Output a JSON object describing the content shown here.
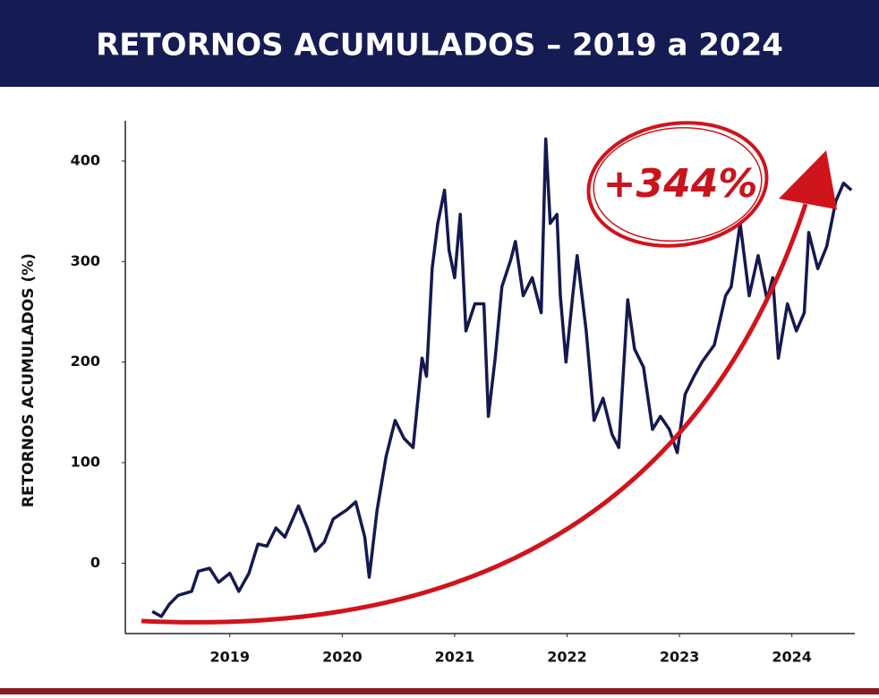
{
  "chart_data": {
    "type": "line",
    "title": "RETORNOS ACUMULADOS – 2019 a 2024",
    "y_label": "RETORNOS ACUMULADOS (%)",
    "annotation": "+344%",
    "xlim": [
      2018.07,
      2024.56
    ],
    "xticks": [
      2019,
      2020,
      2021,
      2022,
      2023,
      2024
    ],
    "ylim": [
      -70,
      440
    ],
    "yticks": [
      0,
      100,
      200,
      300,
      400
    ],
    "grid": false,
    "x": [
      2018.31,
      2018.39,
      2018.46,
      2018.54,
      2018.66,
      2018.72,
      2018.82,
      2018.9,
      2019.0,
      2019.08,
      2019.17,
      2019.25,
      2019.33,
      2019.41,
      2019.49,
      2019.61,
      2019.69,
      2019.76,
      2019.84,
      2019.92,
      2020.04,
      2020.12,
      2020.2,
      2020.24,
      2020.31,
      2020.39,
      2020.47,
      2020.55,
      2020.63,
      2020.71,
      2020.75,
      2020.8,
      2020.85,
      2020.91,
      2020.95,
      2021.0,
      2021.05,
      2021.1,
      2021.18,
      2021.26,
      2021.3,
      2021.36,
      2021.42,
      2021.5,
      2021.54,
      2021.61,
      2021.69,
      2021.77,
      2021.81,
      2021.85,
      2021.91,
      2021.94,
      2021.99,
      2022.05,
      2022.09,
      2022.17,
      2022.24,
      2022.32,
      2022.4,
      2022.46,
      2022.54,
      2022.6,
      2022.68,
      2022.76,
      2022.83,
      2022.91,
      2022.98,
      2023.05,
      2023.13,
      2023.2,
      2023.31,
      2023.41,
      2023.46,
      2023.54,
      2023.62,
      2023.7,
      2023.78,
      2023.83,
      2023.88,
      2023.96,
      2024.04,
      2024.11,
      2024.15,
      2024.23,
      2024.31,
      2024.39,
      2024.46,
      2024.53
    ],
    "series": [
      {
        "name": "Retornos acumulados",
        "color": "#141a4f",
        "values": [
          -48,
          -53,
          -41,
          -32,
          -28,
          -8,
          -5,
          -19,
          -10,
          -28,
          -10,
          19,
          17,
          35,
          26,
          57,
          35,
          12,
          21,
          44,
          53,
          61,
          26,
          -14,
          53,
          106,
          142,
          124,
          115,
          204,
          186,
          293,
          338,
          371,
          311,
          284,
          347,
          231,
          258,
          258,
          146,
          204,
          275,
          302,
          320,
          266,
          284,
          249,
          422,
          338,
          347,
          266,
          200,
          266,
          306,
          231,
          142,
          164,
          128,
          115,
          262,
          213,
          195,
          133,
          146,
          133,
          110,
          168,
          186,
          200,
          217,
          266,
          275,
          338,
          266,
          306,
          262,
          284,
          204,
          258,
          231,
          249,
          329,
          293,
          315,
          360,
          378,
          371
        ]
      }
    ]
  }
}
